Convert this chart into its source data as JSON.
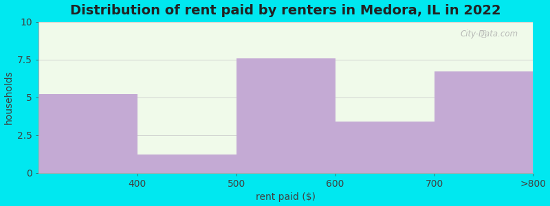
{
  "title": "Distribution of rent paid by renters in Medora, IL in 2022",
  "xlabel": "rent paid ($)",
  "ylabel": "households",
  "tick_labels": [
    "400",
    "500",
    "600",
    "700",
    ">800"
  ],
  "values": [
    5.2,
    1.2,
    7.6,
    3.4,
    6.7
  ],
  "bar_color": "#c4aad4",
  "background_outer": "#00e8f0",
  "background_inner": "#f0faea",
  "ylim": [
    0,
    10
  ],
  "yticks": [
    0,
    2.5,
    5.0,
    7.5,
    10
  ],
  "title_fontsize": 14,
  "label_fontsize": 10,
  "tick_fontsize": 10,
  "watermark_text": "City-Data.com",
  "n_bars": 5
}
